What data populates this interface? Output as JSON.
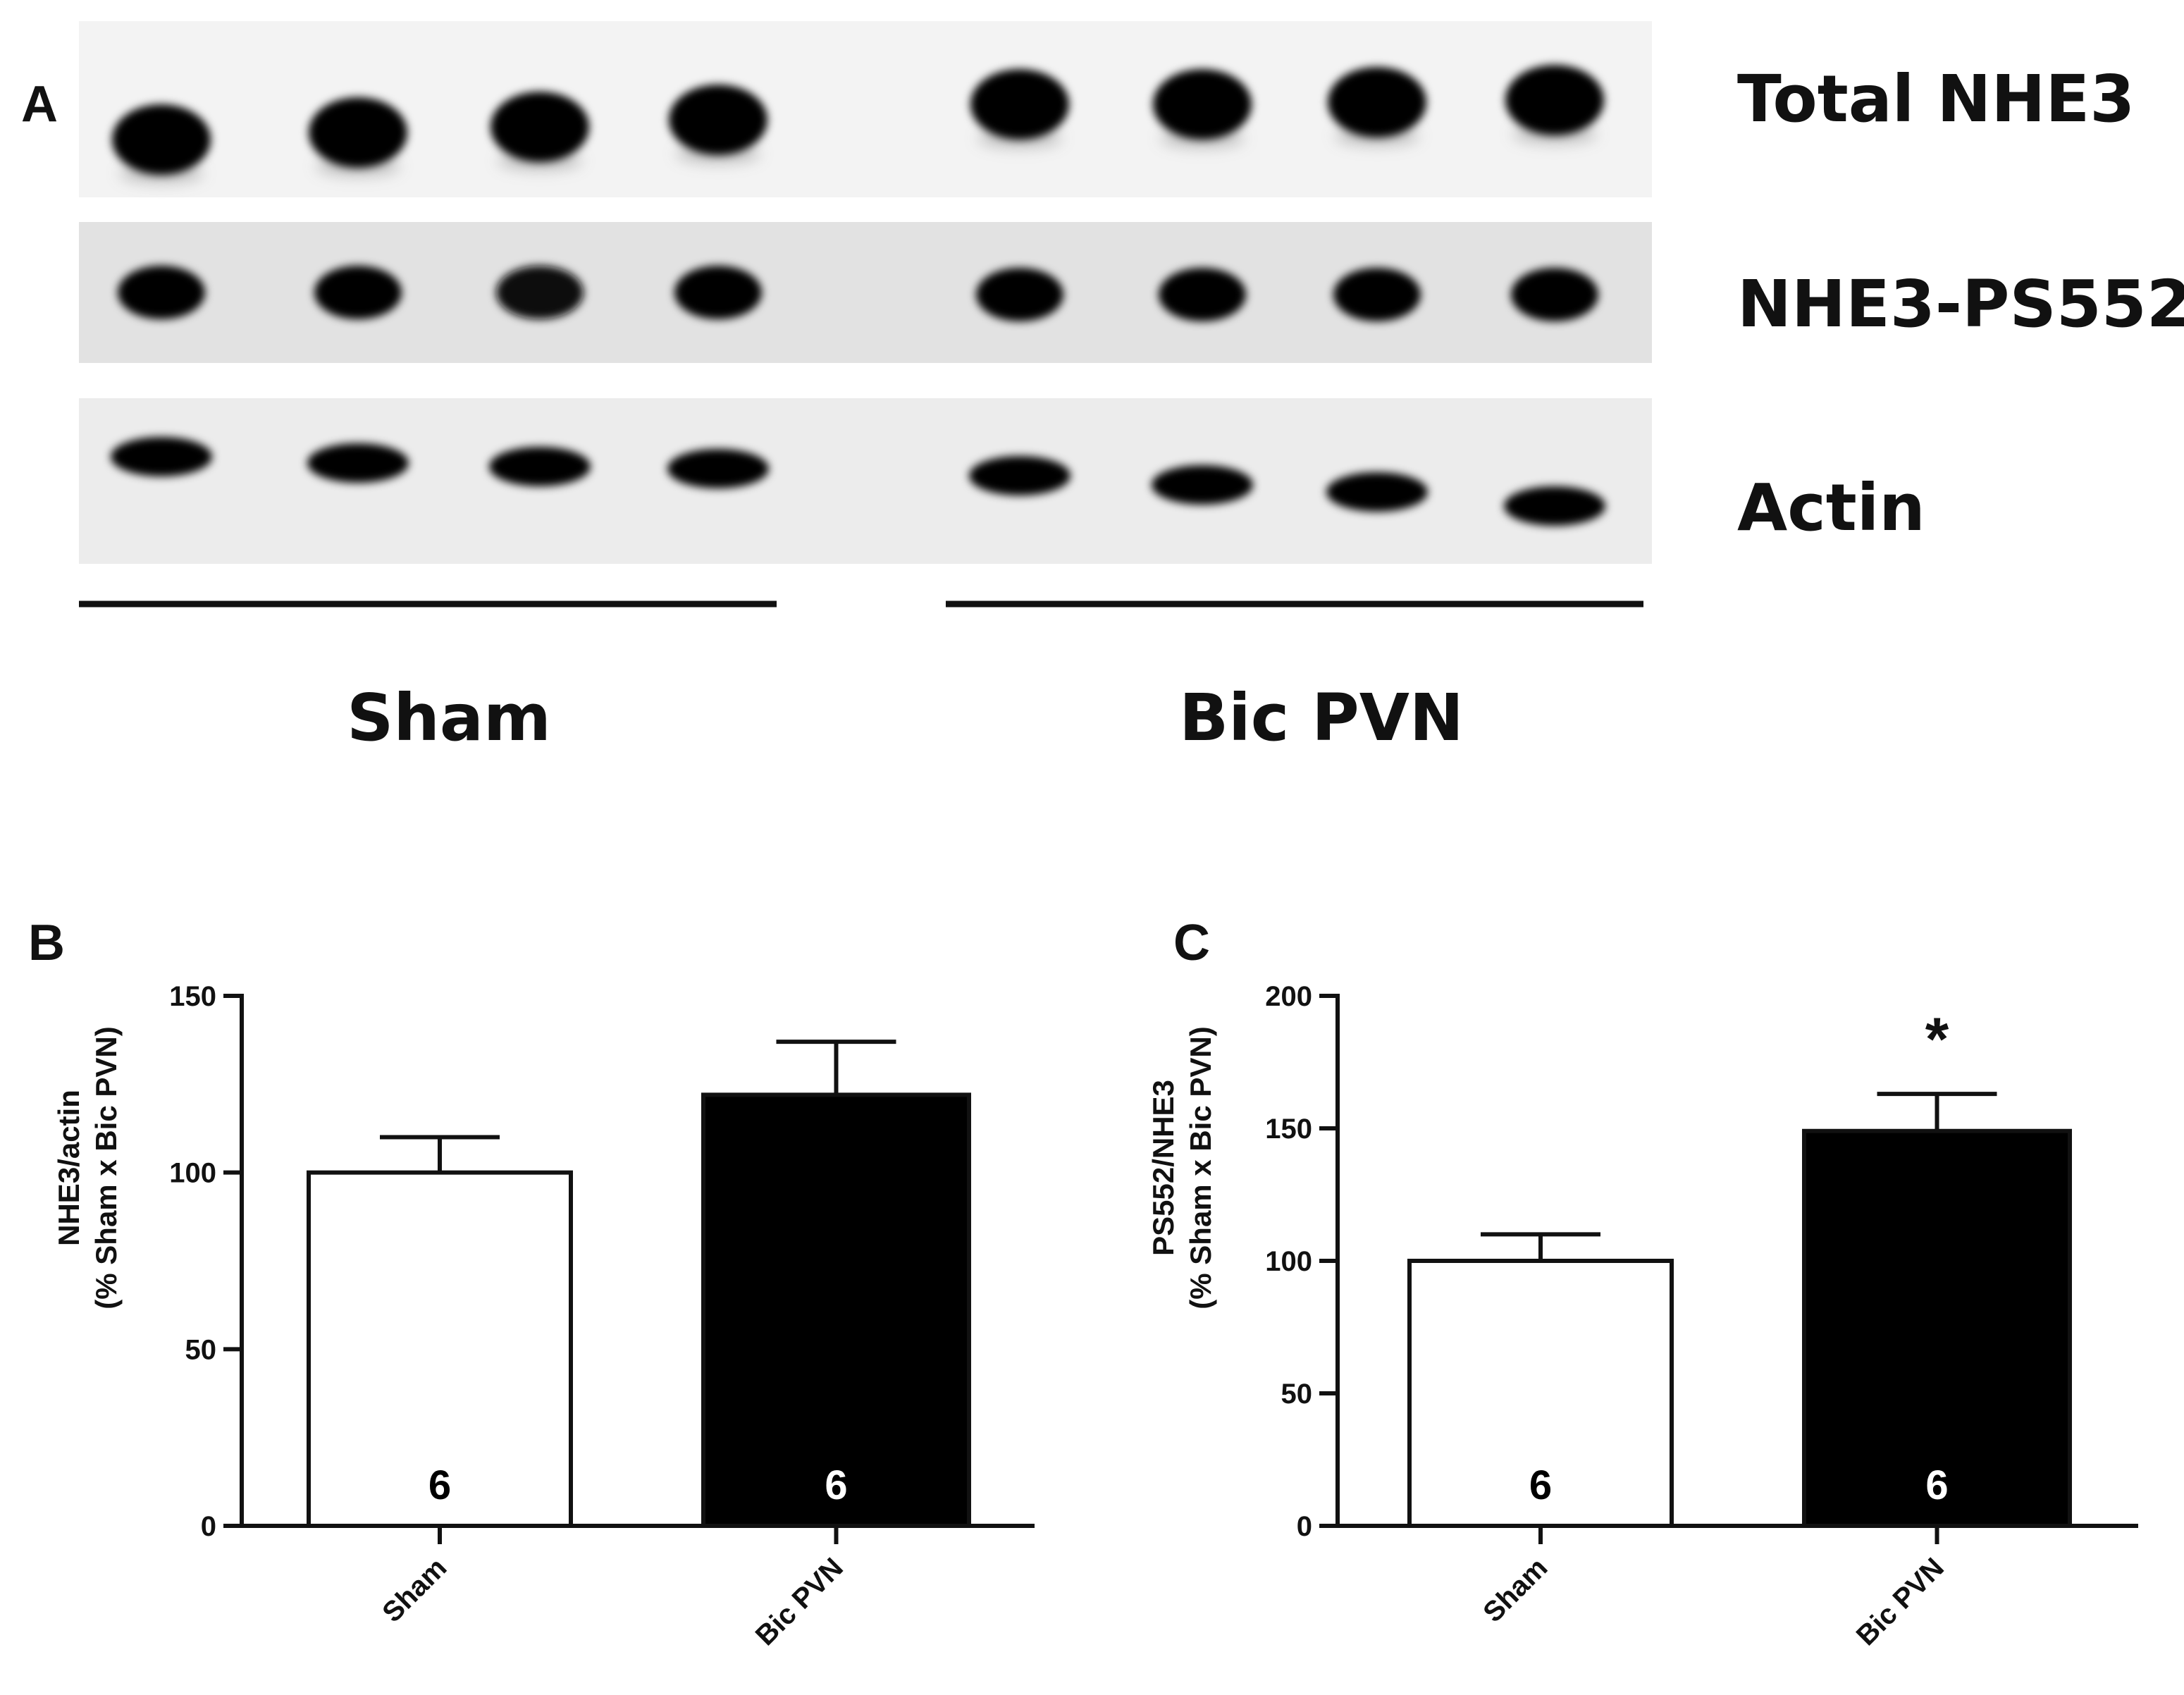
{
  "figure": {
    "panel_a": {
      "letter": "A",
      "rows": [
        {
          "label": "Total NHE3",
          "band_intensity": [
            0.95,
            0.95,
            0.95,
            0.95,
            1.0,
            1.0,
            1.0,
            1.0
          ]
        },
        {
          "label": "NHE3-PS552",
          "band_intensity": [
            0.85,
            0.85,
            0.8,
            0.85,
            1.0,
            1.0,
            1.0,
            1.0
          ]
        },
        {
          "label": "Actin",
          "band_intensity": [
            0.95,
            0.95,
            0.95,
            0.95,
            0.95,
            0.95,
            0.95,
            0.95
          ]
        }
      ],
      "groups": [
        {
          "label": "Sham",
          "lanes": 4
        },
        {
          "label": "Bic PVN",
          "lanes": 4
        }
      ]
    }
  },
  "chart_data": [
    {
      "panel_letter": "B",
      "type": "bar",
      "categories": [
        "Sham",
        "Bic PVN"
      ],
      "values": [
        100,
        122
      ],
      "errors": [
        10,
        15
      ],
      "n_labels": [
        "6",
        "6"
      ],
      "bar_fills": [
        "#ffffff",
        "#000000"
      ],
      "n_label_colors": [
        "#000000",
        "#ffffff"
      ],
      "significance": [
        "",
        ""
      ],
      "ylabel_line1": "NHE3/actin",
      "ylabel_line2": "(% Sham x Bic PVN)",
      "ylim": [
        0,
        150
      ],
      "yticks": [
        0,
        50,
        100,
        150
      ],
      "grid": false
    },
    {
      "panel_letter": "C",
      "type": "bar",
      "categories": [
        "Sham",
        "Bic PVN"
      ],
      "values": [
        100,
        149
      ],
      "errors": [
        10,
        14
      ],
      "n_labels": [
        "6",
        "6"
      ],
      "bar_fills": [
        "#ffffff",
        "#000000"
      ],
      "n_label_colors": [
        "#000000",
        "#ffffff"
      ],
      "significance": [
        "",
        "*"
      ],
      "ylabel_line1": "PS552/NHE3",
      "ylabel_line2": "(% Sham x Bic PVN)",
      "ylim": [
        0,
        200
      ],
      "yticks": [
        0,
        50,
        100,
        150,
        200
      ],
      "grid": false
    }
  ]
}
